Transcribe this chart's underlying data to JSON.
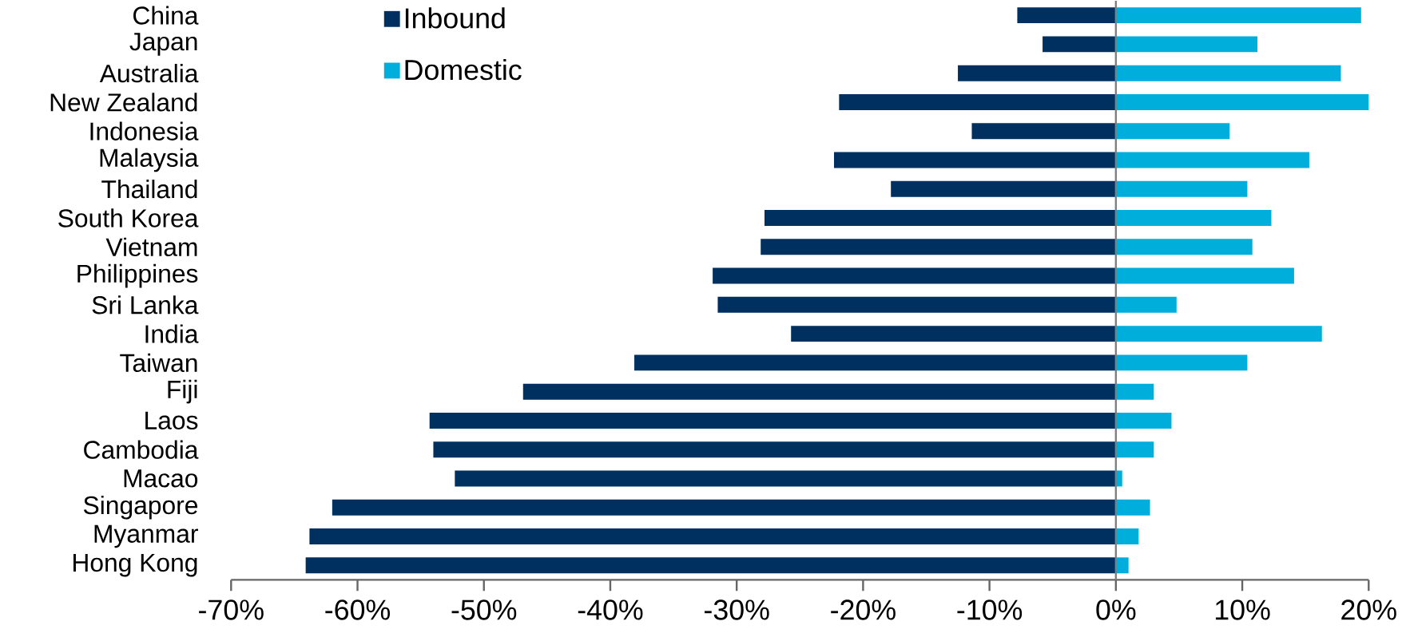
{
  "chart_data": {
    "type": "bar",
    "orientation": "horizontal",
    "categories": [
      "China",
      "Japan",
      "Australia",
      "New Zealand",
      "Indonesia",
      "Malaysia",
      "Thailand",
      "South Korea",
      "Vietnam",
      "Philippines",
      "Sri Lanka",
      "India",
      "Taiwan",
      "Fiji",
      "Laos",
      "Cambodia",
      "Macao",
      "Singapore",
      "Myanmar",
      "Hong Kong"
    ],
    "series": [
      {
        "name": "Inbound",
        "color": "#00305f",
        "values": [
          -7.8,
          -5.8,
          -12.5,
          -21.9,
          -11.4,
          -22.3,
          -17.8,
          -27.8,
          -28.1,
          -31.9,
          -31.5,
          -25.7,
          -38.1,
          -46.9,
          -54.3,
          -54.0,
          -52.3,
          -62.0,
          -63.8,
          -64.1
        ]
      },
      {
        "name": "Domestic",
        "color": "#00aedb",
        "values": [
          19.4,
          11.2,
          17.8,
          20.0,
          9.0,
          15.3,
          10.4,
          12.3,
          10.8,
          14.1,
          4.8,
          16.3,
          10.4,
          3.0,
          4.4,
          3.0,
          0.5,
          2.7,
          1.8,
          1.0
        ]
      }
    ],
    "xlim": [
      -70,
      20
    ],
    "xticks": [
      {
        "value": -70,
        "label": "-70%"
      },
      {
        "value": -60,
        "label": "-60%"
      },
      {
        "value": -50,
        "label": "-50%"
      },
      {
        "value": -40,
        "label": "-40%"
      },
      {
        "value": -30,
        "label": "-30%"
      },
      {
        "value": -20,
        "label": "-20%"
      },
      {
        "value": -10,
        "label": "-10%"
      },
      {
        "value": 0,
        "label": "0%"
      },
      {
        "value": 10,
        "label": "10%"
      },
      {
        "value": 20,
        "label": "20%"
      }
    ],
    "stacked": true,
    "ref_lines": [
      {
        "axis": "x",
        "value": 0,
        "color": "#7f7f7f"
      }
    ],
    "legend": "top left"
  }
}
